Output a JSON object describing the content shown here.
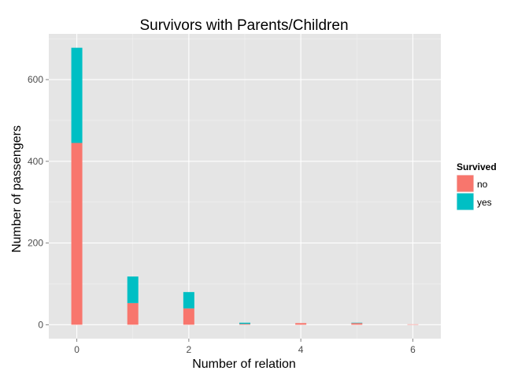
{
  "chart_data": {
    "type": "bar",
    "stacked": true,
    "title": "Survivors with Parents/Children",
    "xlabel": "Number of relation",
    "ylabel": "Number of passengers",
    "x": [
      0,
      1,
      2,
      3,
      4,
      5,
      6
    ],
    "series": [
      {
        "name": "no",
        "color": "#F8766D",
        "values": [
          445,
          53,
          40,
          2,
          4,
          4,
          1
        ]
      },
      {
        "name": "yes",
        "color": "#00BFC4",
        "values": [
          233,
          65,
          40,
          3,
          0,
          1,
          0
        ]
      }
    ],
    "xlim": [
      -0.5,
      6.5
    ],
    "ylim": [
      -34,
      712
    ],
    "x_ticks": [
      0,
      2,
      4,
      6
    ],
    "y_ticks": [
      0,
      200,
      400,
      600
    ],
    "legend": {
      "title": "Survived",
      "position": "right"
    },
    "grid": true
  }
}
